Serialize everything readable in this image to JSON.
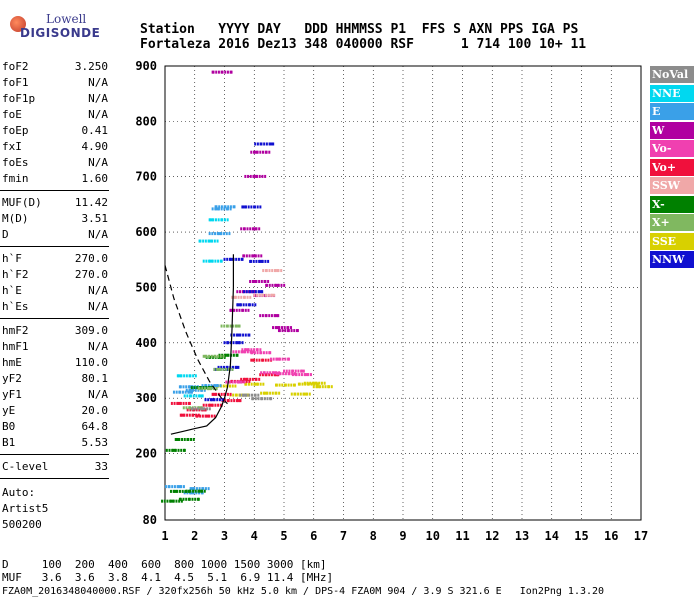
{
  "logo": {
    "line1": "Lowell",
    "line2": "DIGISONDE"
  },
  "header": {
    "labels": "Station   YYYY DAY   DDD HHMMSS P1  FFS S AXN PPS IGA PS",
    "values": "Fortaleza 2016 Dez13 348 040000 RSF      1 714 100 10+ 11"
  },
  "params": {
    "group1": [
      {
        "name": "foF2",
        "value": "3.250"
      },
      {
        "name": "foF1",
        "value": "N/A"
      },
      {
        "name": "foF1p",
        "value": "N/A"
      },
      {
        "name": "foE",
        "value": "N/A"
      },
      {
        "name": "foEp",
        "value": "0.41"
      },
      {
        "name": "fxI",
        "value": "4.90"
      },
      {
        "name": "foEs",
        "value": "N/A"
      },
      {
        "name": "fmin",
        "value": "1.60"
      }
    ],
    "group2": [
      {
        "name": "MUF(D)",
        "value": "11.42"
      },
      {
        "name": "M(D)",
        "value": "3.51"
      },
      {
        "name": "D",
        "value": "N/A"
      }
    ],
    "group3": [
      {
        "name": "h`F",
        "value": "270.0"
      },
      {
        "name": "h`F2",
        "value": "270.0"
      },
      {
        "name": "h`E",
        "value": "N/A"
      },
      {
        "name": "h`Es",
        "value": "N/A"
      }
    ],
    "group4": [
      {
        "name": "hmF2",
        "value": "309.0"
      },
      {
        "name": "hmF1",
        "value": "N/A"
      },
      {
        "name": "hmE",
        "value": "110.0"
      },
      {
        "name": "yF2",
        "value": "80.1"
      },
      {
        "name": "yF1",
        "value": "N/A"
      },
      {
        "name": "yE",
        "value": "20.0"
      },
      {
        "name": "B0",
        "value": "64.8"
      },
      {
        "name": "B1",
        "value": "5.53"
      }
    ],
    "group5": [
      {
        "name": "C-level",
        "value": "33"
      }
    ]
  },
  "autoscale": {
    "line1": "Auto:",
    "line2": "Artist5",
    "line3": "500200"
  },
  "legend": [
    {
      "label": "NoVal",
      "color": "#8c8c8c"
    },
    {
      "label": "NNE",
      "color": "#00d8f0"
    },
    {
      "label": "E",
      "color": "#3aa0e8"
    },
    {
      "label": "W",
      "color": "#b000a0"
    },
    {
      "label": "Vo-",
      "color": "#f040b0"
    },
    {
      "label": "Vo+",
      "color": "#f0103c"
    },
    {
      "label": "SSW",
      "color": "#f0a8a8"
    },
    {
      "label": "X-",
      "color": "#008000"
    },
    {
      "label": "X+",
      "color": "#80b860"
    },
    {
      "label": "SSE",
      "color": "#d8d000"
    },
    {
      "label": "NNW",
      "color": "#1010d0"
    }
  ],
  "footer": {
    "d_line": "D     100  200  400  600  800 1000 1500 3000 [km]",
    "muf_line": "MUF   3.6  3.6  3.8  4.1  4.5  5.1  6.9 11.4 [MHz]",
    "file_line": "FZA0M_2016348040000.RSF / 320fx256h 50 kHz 5.0 km / DPS-4 FZA0M 904 / 3.9 S 321.6 E   Ion2Png 1.3.20"
  },
  "chart_data": {
    "type": "scatter",
    "title": "",
    "xlabel": "",
    "ylabel": "",
    "xlim": [
      1,
      17
    ],
    "ylim": [
      80,
      900
    ],
    "xticks": [
      1,
      2,
      3,
      4,
      5,
      6,
      7,
      8,
      9,
      10,
      11,
      12,
      13,
      14,
      15,
      16,
      17
    ],
    "yticks": [
      80,
      200,
      300,
      400,
      500,
      600,
      700,
      800,
      900
    ],
    "grid": true,
    "legend_position": "right",
    "series": [
      {
        "name": "SSE",
        "color": "#d8d000",
        "points": [
          [
            3.0,
            310
          ],
          [
            3.5,
            310
          ],
          [
            4.0,
            315
          ],
          [
            4.5,
            315
          ],
          [
            5.0,
            315
          ],
          [
            5.5,
            315
          ],
          [
            6.0,
            320
          ],
          [
            6.3,
            330
          ],
          [
            5.8,
            320
          ]
        ]
      },
      {
        "name": "Vo+",
        "color": "#f0103c",
        "points": [
          [
            1.5,
            290
          ],
          [
            1.8,
            285
          ],
          [
            2.0,
            280
          ],
          [
            2.3,
            285
          ],
          [
            2.6,
            290
          ],
          [
            2.9,
            295
          ],
          [
            3.2,
            300
          ],
          [
            3.5,
            320
          ],
          [
            3.8,
            340
          ],
          [
            4.2,
            360
          ],
          [
            4.5,
            350
          ]
        ]
      },
      {
        "name": "Vo-",
        "color": "#f040b0",
        "points": [
          [
            3.3,
            340
          ],
          [
            3.6,
            380
          ],
          [
            3.9,
            400
          ],
          [
            4.2,
            380
          ],
          [
            4.5,
            360
          ],
          [
            4.8,
            370
          ],
          [
            5.0,
            360
          ],
          [
            5.3,
            350
          ],
          [
            5.6,
            360
          ]
        ]
      },
      {
        "name": "W",
        "color": "#b000a0",
        "points": [
          [
            3.5,
            450
          ],
          [
            3.7,
            500
          ],
          [
            3.9,
            550
          ],
          [
            4.1,
            520
          ],
          [
            4.3,
            480
          ],
          [
            4.5,
            460
          ],
          [
            4.7,
            500
          ],
          [
            4.9,
            440
          ],
          [
            5.1,
            420
          ],
          [
            3.8,
            620
          ],
          [
            4.0,
            700
          ],
          [
            4.2,
            760
          ],
          [
            2.9,
            890
          ]
        ]
      },
      {
        "name": "NNW",
        "color": "#1010d0",
        "points": [
          [
            2.6,
            300
          ],
          [
            2.9,
            340
          ],
          [
            3.1,
            360
          ],
          [
            3.3,
            390
          ],
          [
            3.5,
            420
          ],
          [
            3.7,
            460
          ],
          [
            3.9,
            500
          ],
          [
            4.1,
            540
          ],
          [
            3.3,
            560
          ],
          [
            3.9,
            640
          ],
          [
            4.3,
            770
          ]
        ]
      },
      {
        "name": "E",
        "color": "#3aa0e8",
        "points": [
          [
            1.6,
            325
          ],
          [
            1.8,
            320
          ],
          [
            2.0,
            330
          ],
          [
            2.2,
            320
          ],
          [
            2.5,
            340
          ],
          [
            2.8,
            600
          ],
          [
            2.9,
            630
          ],
          [
            3.0,
            650
          ],
          [
            1.3,
            130
          ],
          [
            1.9,
            135
          ],
          [
            2.1,
            128
          ]
        ]
      },
      {
        "name": "NNE",
        "color": "#00d8f0",
        "points": [
          [
            1.7,
            335
          ],
          [
            1.9,
            315
          ],
          [
            2.4,
            580
          ],
          [
            2.6,
            560
          ],
          [
            2.8,
            620
          ]
        ]
      },
      {
        "name": "X-",
        "color": "#008000",
        "points": [
          [
            1.2,
            120
          ],
          [
            1.5,
            123
          ],
          [
            1.8,
            125
          ],
          [
            2.0,
            125
          ],
          [
            1.3,
            215
          ],
          [
            1.6,
            220
          ],
          [
            2.2,
            330
          ],
          [
            2.7,
            370
          ],
          [
            3.1,
            390
          ]
        ]
      },
      {
        "name": "X+",
        "color": "#80b860",
        "points": [
          [
            1.9,
            300
          ],
          [
            2.4,
            320
          ],
          [
            2.9,
            340
          ],
          [
            2.6,
            380
          ],
          [
            3.2,
            420
          ]
        ]
      },
      {
        "name": "SSW",
        "color": "#f0a8a8",
        "points": [
          [
            3.5,
            480
          ],
          [
            4.3,
            500
          ],
          [
            4.6,
            530
          ]
        ]
      },
      {
        "name": "NoVal",
        "color": "#8c8c8c",
        "points": [
          [
            2.2,
            290
          ],
          [
            3.8,
            300
          ],
          [
            4.2,
            310
          ]
        ]
      }
    ],
    "profile_solid": [
      [
        1.2,
        235
      ],
      [
        1.6,
        240
      ],
      [
        2.0,
        245
      ],
      [
        2.4,
        250
      ],
      [
        2.7,
        265
      ],
      [
        2.9,
        285
      ],
      [
        3.0,
        300
      ],
      [
        3.1,
        320
      ],
      [
        3.2,
        360
      ],
      [
        3.25,
        420
      ],
      [
        3.3,
        500
      ],
      [
        3.3,
        560
      ]
    ],
    "profile_dashed": [
      [
        1.0,
        540
      ],
      [
        1.3,
        480
      ],
      [
        1.7,
        420
      ],
      [
        2.1,
        370
      ],
      [
        2.5,
        330
      ],
      [
        2.9,
        300
      ],
      [
        3.1,
        290
      ]
    ]
  }
}
